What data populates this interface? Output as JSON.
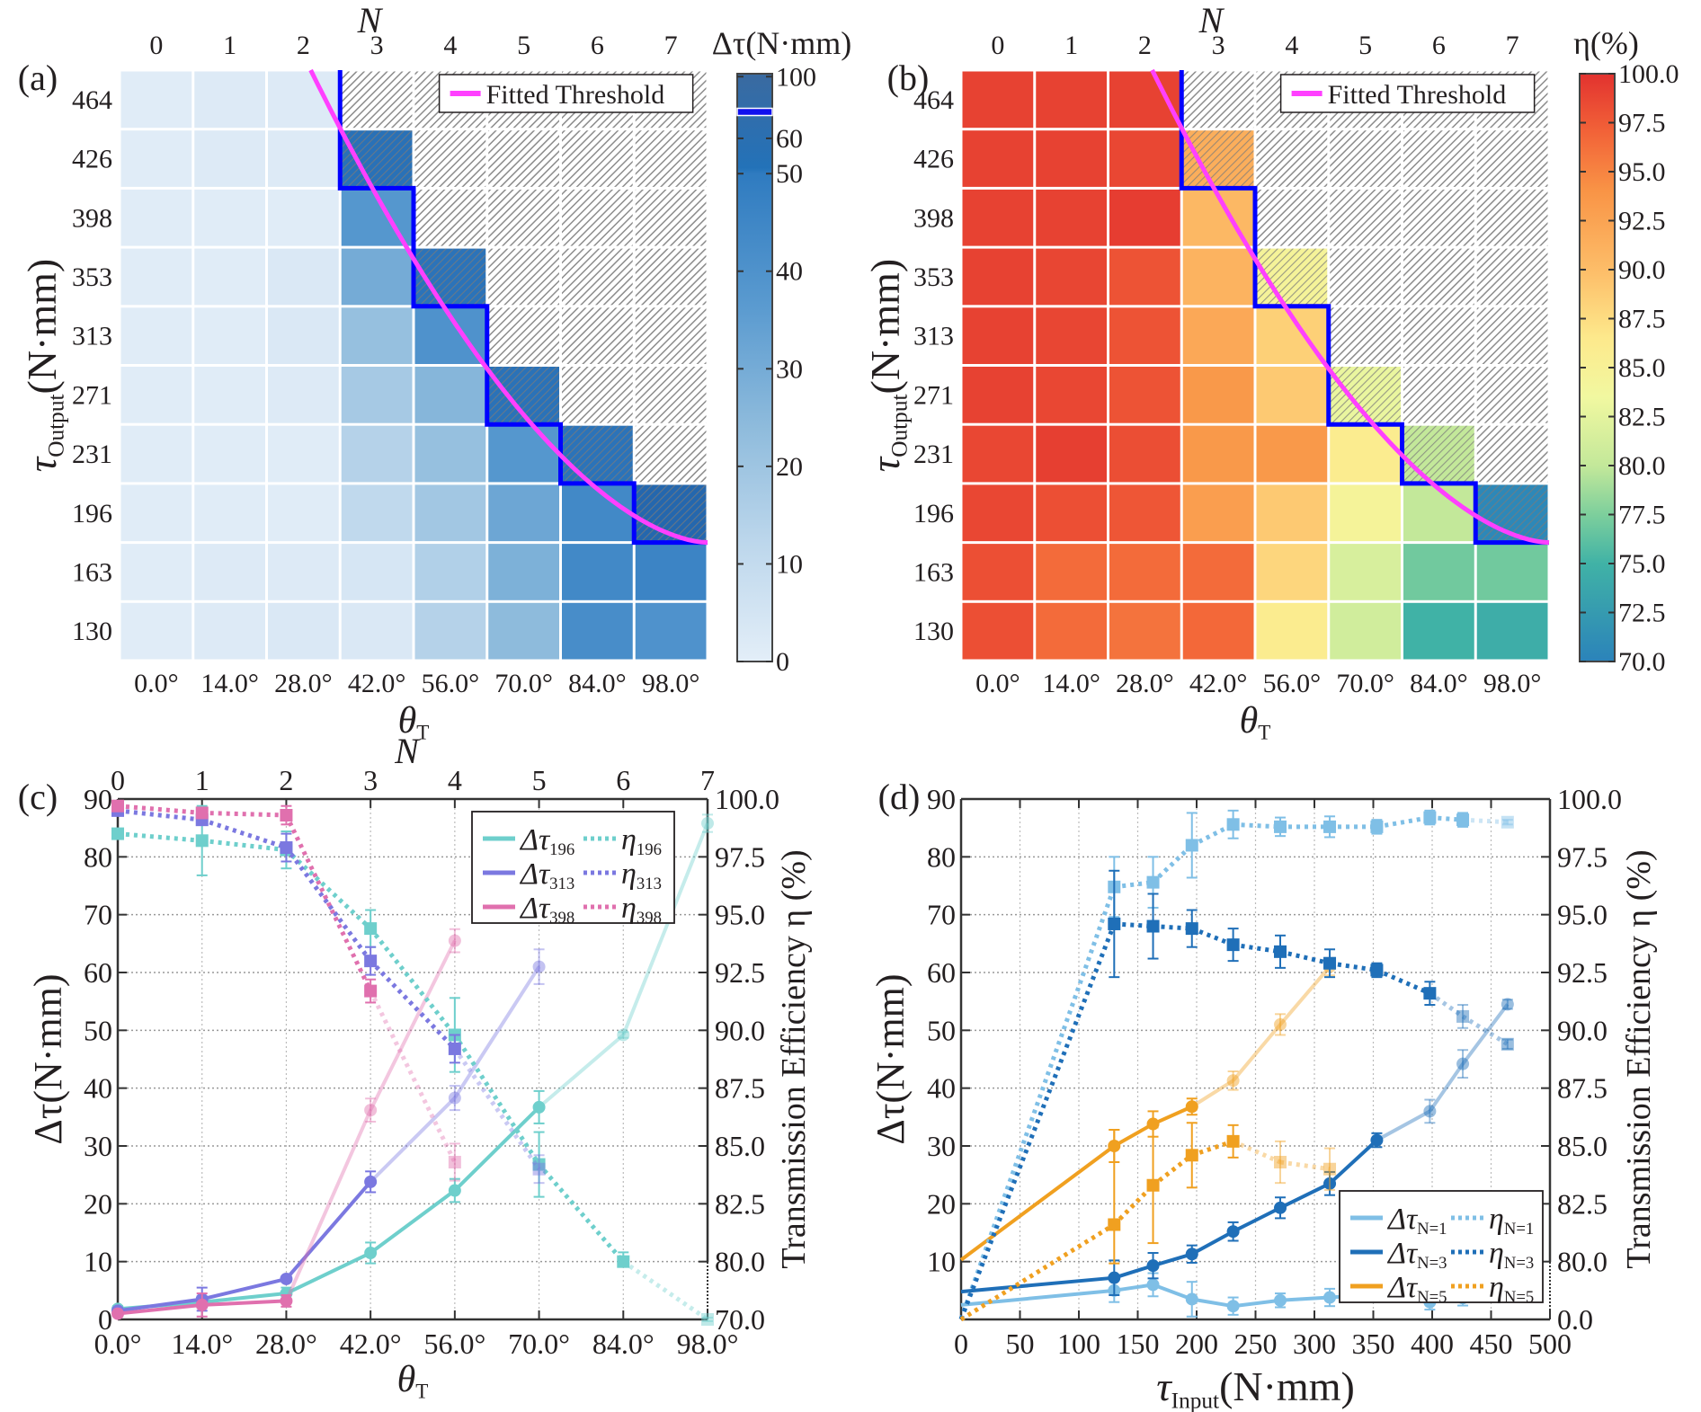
{
  "figure": {
    "panels": [
      "(a)",
      "(b)",
      "(c)",
      "(d)"
    ]
  },
  "chart_data": [
    {
      "id": "a",
      "panel_label": "(a)",
      "type": "heatmap",
      "top_axis_title": "N",
      "top_ticks": [
        "0",
        "1",
        "2",
        "3",
        "4",
        "5",
        "6",
        "7"
      ],
      "x_ticks": [
        "0.0°",
        "14.0°",
        "28.0°",
        "42.0°",
        "56.0°",
        "70.0°",
        "84.0°",
        "98.0°"
      ],
      "xlabel": "θ",
      "xlabel_sub": "T",
      "ylabel": "τ",
      "ylabel_sub": "Output",
      "ylabel_unit": "(N·mm)",
      "y_ticks": [
        "464",
        "426",
        "398",
        "353",
        "313",
        "271",
        "231",
        "196",
        "163",
        "130"
      ],
      "colorbar_title": "Δτ(N·mm)",
      "colorbar_ticks": [
        "0",
        "10",
        "20",
        "30",
        "40",
        "50",
        "60",
        "100"
      ],
      "colorbar_range": [
        0,
        100
      ],
      "legend": "Fitted Threshold",
      "legend_color": "#ff40ff",
      "boundary_color": "#0000ff",
      "hatch_color": "#8c8c8c",
      "values": [
        [
          1,
          2,
          2,
          null,
          null,
          null,
          null,
          null
        ],
        [
          1,
          2,
          2,
          65,
          null,
          null,
          null,
          null
        ],
        [
          1,
          1,
          1,
          38,
          null,
          null,
          null,
          null
        ],
        [
          1,
          1,
          3,
          30,
          60,
          null,
          null,
          null
        ],
        [
          1,
          1,
          3,
          22,
          40,
          null,
          null,
          null
        ],
        [
          1,
          1,
          2,
          18,
          26,
          62,
          null,
          null
        ],
        [
          1,
          1,
          1,
          14,
          22,
          38,
          60,
          null
        ],
        [
          1,
          1,
          1,
          11,
          19,
          32,
          44,
          86
        ],
        [
          1,
          2,
          2,
          4,
          15,
          28,
          44,
          46
        ],
        [
          1,
          2,
          3,
          3,
          14,
          24,
          42,
          40
        ]
      ],
      "hatched_colored": [
        [
          1,
          3
        ],
        [
          3,
          4
        ],
        [
          5,
          5
        ],
        [
          6,
          6
        ],
        [
          7,
          7
        ]
      ],
      "threshold_steps": [
        [
          0,
          3
        ],
        [
          2,
          4
        ],
        [
          4,
          5
        ],
        [
          6,
          6
        ],
        [
          7,
          7
        ],
        [
          8,
          8
        ]
      ]
    },
    {
      "id": "b",
      "panel_label": "(b)",
      "type": "heatmap",
      "top_axis_title": "N",
      "top_ticks": [
        "0",
        "1",
        "2",
        "3",
        "4",
        "5",
        "6",
        "7"
      ],
      "x_ticks": [
        "0.0°",
        "14.0°",
        "28.0°",
        "42.0°",
        "56.0°",
        "70.0°",
        "84.0°",
        "98.0°"
      ],
      "xlabel": "θ",
      "xlabel_sub": "T",
      "ylabel": "τ",
      "ylabel_sub": "Output",
      "ylabel_unit": "(N·mm)",
      "y_ticks": [
        "464",
        "426",
        "398",
        "353",
        "313",
        "271",
        "231",
        "196",
        "163",
        "130"
      ],
      "colorbar_title": "η(%)",
      "colorbar_ticks": [
        "70.0",
        "72.5",
        "75.0",
        "77.5",
        "80.0",
        "82.5",
        "85.0",
        "87.5",
        "90.0",
        "92.5",
        "95.0",
        "97.5",
        "100.0"
      ],
      "colorbar_range": [
        70,
        100
      ],
      "legend": "Fitted Threshold",
      "legend_color": "#ff40ff",
      "boundary_color": "#0000ff",
      "values": [
        [
          99.0,
          99.0,
          99.0,
          null,
          null,
          null,
          null,
          null
        ],
        [
          99.0,
          99.0,
          98.7,
          91.5,
          null,
          null,
          null,
          null
        ],
        [
          99.0,
          99.0,
          99.3,
          90.5,
          null,
          null,
          null,
          null
        ],
        [
          99.0,
          98.8,
          98.0,
          91.0,
          84.5,
          null,
          null,
          null
        ],
        [
          99.0,
          98.8,
          98.0,
          92.0,
          88.5,
          null,
          null,
          null
        ],
        [
          99.0,
          98.7,
          98.0,
          93.5,
          89.0,
          83.0,
          null,
          null
        ],
        [
          98.7,
          99.2,
          98.3,
          93.5,
          93.5,
          86.0,
          80.0,
          null
        ],
        [
          98.7,
          98.2,
          97.8,
          93.0,
          89.0,
          84.5,
          80.0,
          70.5
        ],
        [
          98.2,
          96.5,
          96.5,
          96.5,
          88.0,
          81.5,
          77.0,
          77.0
        ],
        [
          98.2,
          96.5,
          96.0,
          96.7,
          86.0,
          81.0,
          75.0,
          74.5
        ]
      ],
      "hatched_colored": [
        [
          1,
          3
        ],
        [
          3,
          4
        ],
        [
          5,
          5
        ],
        [
          6,
          6
        ],
        [
          7,
          7
        ]
      ],
      "threshold_steps": [
        [
          0,
          3
        ],
        [
          2,
          4
        ],
        [
          4,
          5
        ],
        [
          6,
          6
        ],
        [
          7,
          7
        ],
        [
          8,
          8
        ]
      ]
    },
    {
      "id": "c",
      "panel_label": "(c)",
      "type": "line",
      "top_axis_title": "N",
      "top_ticks": [
        "0",
        "1",
        "2",
        "3",
        "4",
        "5",
        "6",
        "7"
      ],
      "x_ticks": [
        "0.0°",
        "14.0°",
        "28.0°",
        "42.0°",
        "56.0°",
        "70.0°",
        "84.0°",
        "98.0°"
      ],
      "x": [
        0,
        14,
        28,
        42,
        56,
        70,
        84,
        98
      ],
      "xlim": [
        0,
        98
      ],
      "xlabel": "θ",
      "xlabel_sub": "T",
      "ylabel": "Δτ(N·mm)",
      "ylim": [
        0,
        90
      ],
      "y_ticks": [
        "0",
        "10",
        "20",
        "30",
        "40",
        "50",
        "60",
        "70",
        "80",
        "90"
      ],
      "y2label": "Transmission Efficiency η (%)",
      "y2_ticks": [
        "70.0",
        "80.0",
        "82.5",
        "85.0",
        "87.5",
        "90.0",
        "92.5",
        "95.0",
        "97.5",
        "100.0"
      ],
      "grid": true,
      "legend_position": "top-right",
      "series": [
        {
          "name": "Δτ196",
          "label_main": "Δτ",
          "label_sub": "196",
          "style": "solid",
          "color": "#6ecfcc",
          "marker": "circle",
          "values": [
            1.8,
            3.0,
            4.5,
            11.5,
            22.3,
            36.7,
            49.2,
            85.8
          ],
          "errors": [
            0.5,
            1.0,
            1.0,
            1.8,
            2.0,
            2.8,
            0.5,
            1.5
          ],
          "faded_from": 6
        },
        {
          "name": "Δτ313",
          "label_main": "Δτ",
          "label_sub": "313",
          "style": "solid",
          "color": "#7b78e0",
          "marker": "circle",
          "values": [
            1.5,
            3.5,
            7.0,
            23.8,
            38.3,
            61.0
          ],
          "errors": [
            0.5,
            2.0,
            0.5,
            1.8,
            2.1,
            3.0
          ],
          "faded_from": 4
        },
        {
          "name": "Δτ398",
          "label_main": "Δτ",
          "label_sub": "398",
          "style": "solid",
          "color": "#e070ae",
          "marker": "circle",
          "values": [
            1.0,
            2.5,
            3.2,
            36.2,
            65.5
          ],
          "errors": [
            0.3,
            2.0,
            1.0,
            2.0,
            2.0
          ],
          "faded_from": 3
        },
        {
          "name": "η196",
          "label_main": "η",
          "label_sub": "196",
          "style": "dotted",
          "color": "#6ecfcc",
          "marker": "square",
          "values": [
            98.5,
            98.2,
            97.8,
            94.4,
            89.8,
            84.2,
            80.0,
            70.0
          ],
          "errors": [
            0.2,
            1.5,
            0.8,
            0.8,
            1.6,
            1.4,
            0.4,
            0.3
          ],
          "faded_from": 7
        },
        {
          "name": "η313",
          "label_main": "η",
          "label_sub": "313",
          "style": "dotted",
          "color": "#7b78e0",
          "marker": "square",
          "values": [
            99.5,
            99.1,
            97.9,
            93.0,
            89.2,
            84.0
          ],
          "errors": [
            0.2,
            0.2,
            0.6,
            0.6,
            0.6,
            0.6
          ],
          "faded_from": 5
        },
        {
          "name": "η398",
          "label_main": "η",
          "label_sub": "398",
          "style": "dotted",
          "color": "#e070ae",
          "marker": "square",
          "values": [
            99.7,
            99.4,
            99.3,
            91.7,
            84.3
          ],
          "errors": [
            0.1,
            0.1,
            0.4,
            0.5,
            0.8
          ],
          "faded_from": 4
        }
      ]
    },
    {
      "id": "d",
      "panel_label": "(d)",
      "type": "line",
      "x_ticks": [
        "0",
        "50",
        "100",
        "150",
        "200",
        "250",
        "300",
        "350",
        "400",
        "450",
        "500"
      ],
      "xlim": [
        0,
        500
      ],
      "xlabel": "τ",
      "xlabel_sub": "Input",
      "xlabel_unit": "(N·mm)",
      "ylabel": "Δτ(N·mm)",
      "ylim": [
        0,
        90
      ],
      "y_ticks": [
        "10",
        "20",
        "30",
        "40",
        "50",
        "60",
        "70",
        "80",
        "90"
      ],
      "y2label": "Transmission Efficiency η (%)",
      "y2_ticks": [
        "0.0",
        "80.0",
        "82.5",
        "85.0",
        "87.5",
        "90.0",
        "92.5",
        "95.0",
        "97.5",
        "100.0"
      ],
      "grid": true,
      "legend_position": "bottom-right",
      "series": [
        {
          "name": "ΔτN=1",
          "label_main": "Δτ",
          "label_sub": "N=1",
          "style": "solid",
          "color": "#7fbfe6",
          "marker": "circle",
          "x": [
            0,
            130,
            163,
            196,
            231,
            271,
            313,
            353,
            398,
            426,
            464
          ],
          "values": [
            2.5,
            5.0,
            6.0,
            3.5,
            2.3,
            3.3,
            3.8,
            4.3,
            3.0,
            3.7,
            4.7
          ],
          "errors": [
            0,
            2,
            2,
            3,
            1.5,
            1.2,
            1.5,
            1,
            1.3,
            1.3,
            0.5
          ],
          "faded_from": 99
        },
        {
          "name": "ΔτN=3",
          "label_main": "Δτ",
          "label_sub": "N=3",
          "style": "solid",
          "color": "#1f6fb8",
          "marker": "circle",
          "x": [
            0,
            130,
            163,
            196,
            231,
            271,
            313,
            353,
            398,
            426,
            464
          ],
          "values": [
            4.8,
            7.2,
            9.3,
            11.3,
            15.2,
            19.3,
            23.5,
            31.0,
            36.0,
            44.2,
            54.5
          ],
          "errors": [
            0,
            3.0,
            2.2,
            1.5,
            1.6,
            1.8,
            2,
            1.2,
            2.0,
            2.4,
            0.8
          ],
          "faded_from": 8
        },
        {
          "name": "ΔτN=5",
          "label_main": "Δτ",
          "label_sub": "N=5",
          "style": "solid",
          "color": "#f0a020",
          "marker": "circle",
          "x": [
            0,
            130,
            163,
            196,
            231,
            271,
            313
          ],
          "values": [
            10.3,
            30.0,
            33.8,
            36.8,
            41.3,
            51.0,
            61.0
          ],
          "errors": [
            0,
            2.8,
            2.2,
            1.4,
            1.6,
            1.8,
            1.5
          ],
          "faded_from": 4
        },
        {
          "name": "ηN=1",
          "label_main": "η",
          "label_sub": "N=1",
          "style": "dotted",
          "color": "#7fbfe6",
          "marker": "square",
          "x": [
            0,
            130,
            163,
            196,
            231,
            271,
            313,
            353,
            398,
            426,
            464
          ],
          "values": [
            0.5,
            96.2,
            96.4,
            98.0,
            98.9,
            98.8,
            98.8,
            98.8,
            99.2,
            99.1,
            99.0
          ],
          "errors": [
            0,
            1.3,
            1.1,
            1.4,
            0.6,
            0.4,
            0.45,
            0.3,
            0.3,
            0.3,
            0.1
          ],
          "faded_from": 10
        },
        {
          "name": "ηN=3",
          "label_main": "η",
          "label_sub": "N=3",
          "style": "dotted",
          "color": "#1f6fb8",
          "marker": "square",
          "x": [
            0,
            130,
            163,
            196,
            231,
            271,
            313,
            353,
            398,
            426,
            464
          ],
          "values": [
            0.5,
            94.6,
            94.5,
            94.4,
            93.7,
            93.4,
            92.9,
            92.6,
            91.6,
            90.6,
            89.4
          ],
          "errors": [
            0,
            2.3,
            1.4,
            0.8,
            0.7,
            0.7,
            0.6,
            0.3,
            0.5,
            0.5,
            0.2
          ],
          "faded_from": 9
        },
        {
          "name": "ηN=5",
          "label_main": "η",
          "label_sub": "N=5",
          "style": "dotted",
          "color": "#f0a020",
          "marker": "square",
          "x": [
            0,
            130,
            163,
            196,
            231,
            271,
            313
          ],
          "values": [
            0.0,
            81.6,
            83.3,
            84.6,
            85.2,
            84.3,
            84.0
          ],
          "errors": [
            0,
            4.1,
            2.5,
            1.4,
            0.7,
            0.9,
            0.9
          ],
          "faded_from": 5
        }
      ]
    }
  ]
}
